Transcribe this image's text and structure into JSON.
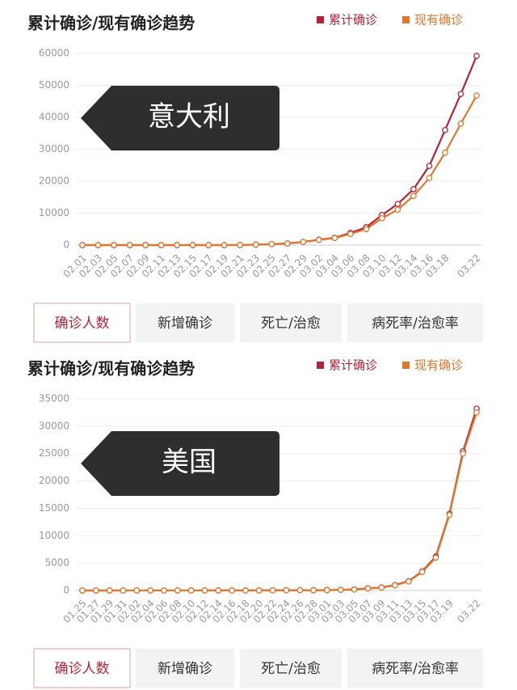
{
  "chart_data": [
    {
      "type": "line",
      "title": "累计确诊/现有确诊趋势",
      "annotation": "意大利",
      "categories": [
        "02.01",
        "02.03",
        "02.05",
        "02.07",
        "02.09",
        "02.11",
        "02.13",
        "02.15",
        "02.17",
        "02.19",
        "02.21",
        "02.23",
        "02.25",
        "02.27",
        "02.29",
        "03.02",
        "03.04",
        "03.06",
        "03.08",
        "03.10",
        "03.12",
        "03.14",
        "03.16",
        "03.18",
        null,
        "03.22"
      ],
      "series": [
        {
          "name": "累计确诊",
          "color": "#b4233a",
          "values": [
            0,
            0,
            0,
            0,
            0,
            0,
            0,
            0,
            0,
            0,
            20,
            150,
            300,
            500,
            1000,
            1700,
            2300,
            3800,
            5600,
            9400,
            12900,
            17500,
            24800,
            36000,
            47300,
            59200
          ]
        },
        {
          "name": "现有确诊",
          "color": "#e0782c",
          "values": [
            0,
            0,
            0,
            0,
            0,
            0,
            0,
            0,
            0,
            0,
            20,
            150,
            300,
            500,
            1000,
            1600,
            2200,
            3500,
            5000,
            8400,
            11100,
            15400,
            21000,
            28900,
            38000,
            46800
          ]
        }
      ],
      "ylim": [
        0,
        60000
      ],
      "yticks": [
        0,
        10000,
        20000,
        30000,
        40000,
        50000,
        60000
      ],
      "grid": true,
      "legend": "top-right",
      "tabs": [
        "确诊人数",
        "新增确诊",
        "死亡/治愈",
        "病死率/治愈率"
      ],
      "active_tab": 0
    },
    {
      "type": "line",
      "title": "累计确诊/现有确诊趋势",
      "annotation": "美国",
      "categories": [
        "01.25",
        "01.27",
        "01.29",
        "01.31",
        "02.02",
        "02.04",
        "02.06",
        "02.08",
        "02.10",
        "02.12",
        "02.14",
        "02.16",
        "02.18",
        "02.20",
        "02.22",
        "02.24",
        "02.26",
        "02.28",
        "03.01",
        "03.03",
        "03.05",
        "03.07",
        "03.09",
        "03.11",
        "03.13",
        "03.15",
        "03.17",
        "03.19",
        null,
        "03.22"
      ],
      "series": [
        {
          "name": "累计确诊",
          "color": "#b4233a",
          "values": [
            2,
            5,
            5,
            7,
            8,
            11,
            12,
            12,
            12,
            13,
            13,
            13,
            13,
            13,
            35,
            53,
            57,
            60,
            75,
            120,
            200,
            400,
            550,
            1000,
            1700,
            3500,
            6200,
            14000,
            25400,
            33200
          ]
        },
        {
          "name": "现有确诊",
          "color": "#e0782c",
          "values": [
            2,
            5,
            5,
            7,
            8,
            10,
            11,
            11,
            11,
            11,
            11,
            10,
            10,
            10,
            30,
            48,
            52,
            55,
            70,
            110,
            180,
            370,
            520,
            950,
            1650,
            3400,
            6000,
            13800,
            25000,
            32500
          ]
        }
      ],
      "ylim": [
        0,
        35000
      ],
      "yticks": [
        0,
        5000,
        10000,
        15000,
        20000,
        25000,
        30000,
        35000
      ],
      "grid": true,
      "legend": "top-right",
      "tabs": [
        "确诊人数",
        "新增确诊",
        "死亡/治愈",
        "病死率/治愈率"
      ],
      "active_tab": 0
    }
  ]
}
